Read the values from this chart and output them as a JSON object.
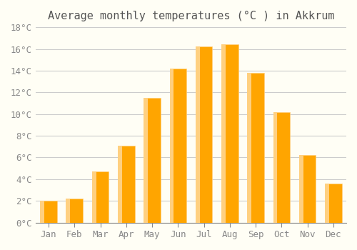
{
  "title": "Average monthly temperatures (°C ) in Akkrum",
  "months": [
    "Jan",
    "Feb",
    "Mar",
    "Apr",
    "May",
    "Jun",
    "Jul",
    "Aug",
    "Sep",
    "Oct",
    "Nov",
    "Dec"
  ],
  "values": [
    2.0,
    2.2,
    4.7,
    7.1,
    11.5,
    14.2,
    16.2,
    16.4,
    13.8,
    10.2,
    6.2,
    3.6
  ],
  "bar_color_main": "#FFA500",
  "bar_color_light": "#FFD080",
  "background_color": "#FFFEF5",
  "grid_color": "#CCCCCC",
  "ylim": [
    0,
    18
  ],
  "yticks": [
    0,
    2,
    4,
    6,
    8,
    10,
    12,
    14,
    16,
    18
  ],
  "ytick_labels": [
    "0°C",
    "2°C",
    "4°C",
    "6°C",
    "8°C",
    "10°C",
    "12°C",
    "14°C",
    "16°C",
    "18°C"
  ],
  "title_fontsize": 11,
  "tick_fontsize": 9,
  "font_family": "monospace"
}
